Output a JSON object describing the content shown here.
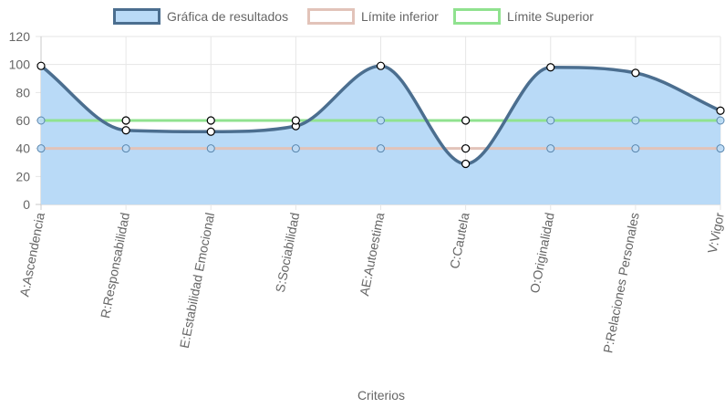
{
  "chart_data": {
    "type": "line",
    "categories": [
      "A:Ascendencia",
      "R:Responsabilidad",
      "E:Estabilidad Emocional",
      "S:Sociabilidad",
      "AE:Autoestima",
      "C:Cautela",
      "O:Originalidad",
      "P:Relaciones Personales",
      "V:Vigor"
    ],
    "series": [
      {
        "name": "Gráfica de resultados",
        "values": [
          99,
          53,
          52,
          56,
          99,
          29,
          98,
          94,
          67
        ],
        "color": "#4b6e8f",
        "fill": "#b9daf7",
        "smooth": true
      },
      {
        "name": "Límite inferior",
        "values": [
          40,
          40,
          40,
          40,
          40,
          40,
          40,
          40,
          40
        ],
        "color": "#e2c3b9",
        "fill": null,
        "smooth": false
      },
      {
        "name": "Límite Superior",
        "values": [
          60,
          60,
          60,
          60,
          60,
          60,
          60,
          60,
          60
        ],
        "color": "#90e28f",
        "fill": null,
        "smooth": false
      }
    ],
    "xlabel": "Criterios",
    "ylabel": "",
    "ylim": [
      0,
      120
    ],
    "yticks": [
      0,
      20,
      40,
      60,
      80,
      100,
      120
    ],
    "grid": true,
    "legend_position": "top"
  }
}
